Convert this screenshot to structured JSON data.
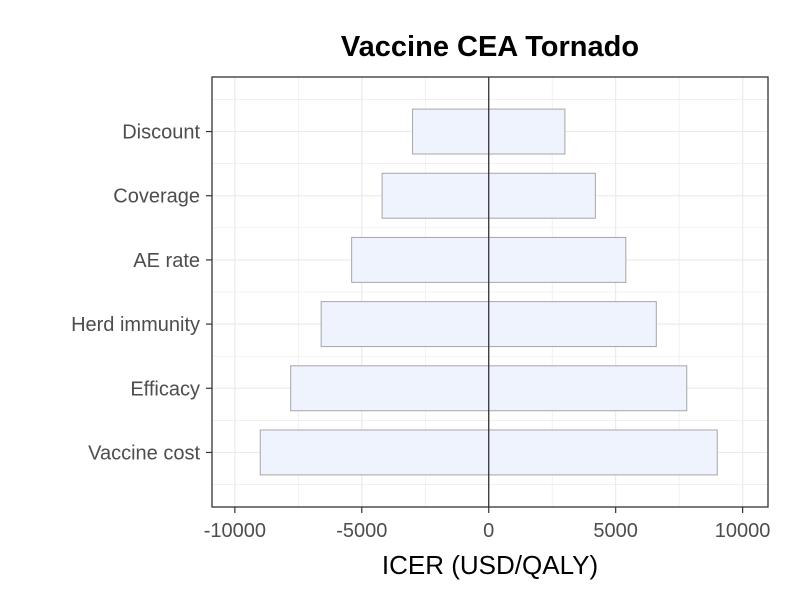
{
  "chart_data": {
    "type": "bar",
    "orientation": "horizontal",
    "variant": "tornado",
    "title": "Vaccine CEA Tornado",
    "xlabel": "ICER (USD/QALY)",
    "ylabel": "",
    "xlim": [
      -10900,
      11000
    ],
    "x_ticks": [
      -10000,
      -5000,
      0,
      5000,
      10000
    ],
    "x_tick_labels": [
      "-10000",
      "-5000",
      "0",
      "5000",
      "10000"
    ],
    "categories": [
      "Vaccine cost",
      "Efficacy",
      "Herd immunity",
      "AE rate",
      "Coverage",
      "Discount"
    ],
    "low": [
      -9000,
      -7800,
      -6600,
      -5400,
      -4200,
      -3000
    ],
    "high": [
      9000,
      7800,
      6600,
      5400,
      4200,
      3000
    ],
    "reference_line": 0,
    "grid": true,
    "bar_fill": "#eef3fd",
    "bar_stroke": "#a6a6a6",
    "panel_border": "#333333",
    "grid_color": "#ebebeb"
  }
}
